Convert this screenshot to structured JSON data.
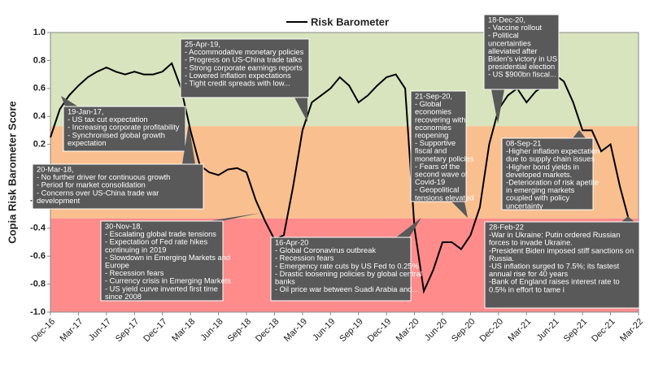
{
  "chart_data": {
    "type": "line",
    "y_label": "Copia Risk Barometer Score",
    "x": [
      "Dec-16",
      "Jan-17",
      "Feb-17",
      "Mar-17",
      "Apr-17",
      "May-17",
      "Jun-17",
      "Jul-17",
      "Aug-17",
      "Sep-17",
      "Oct-17",
      "Nov-17",
      "Dec-17",
      "Jan-18",
      "Feb-18",
      "Mar-18",
      "Apr-18",
      "May-18",
      "Jun-18",
      "Jul-18",
      "Aug-18",
      "Sep-18",
      "Oct-18",
      "Nov-18",
      "Dec-18",
      "Jan-19",
      "Feb-19",
      "Mar-19",
      "Apr-19",
      "May-19",
      "Jun-19",
      "Jul-19",
      "Aug-19",
      "Sep-19",
      "Oct-19",
      "Nov-19",
      "Dec-19",
      "Jan-20",
      "Feb-20",
      "Mar-20",
      "Apr-20",
      "May-20",
      "Jun-20",
      "Jul-20",
      "Aug-20",
      "Sep-20",
      "Oct-20",
      "Nov-20",
      "Dec-20",
      "Jan-21",
      "Feb-21",
      "Mar-21",
      "Apr-21",
      "May-21",
      "Jun-21",
      "Jul-21",
      "Aug-21",
      "Sep-21",
      "Oct-21",
      "Nov-21",
      "Dec-21",
      "Jan-22",
      "Feb-22",
      "Mar-22"
    ],
    "xticks": [
      "Dec-16",
      "Mar-17",
      "Jun-17",
      "Sep-17",
      "Dec-17",
      "Mar-18",
      "Jun-18",
      "Sep-18",
      "Dec-18",
      "Mar-19",
      "Jun-19",
      "Sep-19",
      "Dec-19",
      "Mar-20",
      "Jun-20",
      "Sep-20",
      "Dec-20",
      "Mar-21",
      "Jun-21",
      "Sep-21",
      "Dec-21",
      "Mar-22"
    ],
    "series": [
      {
        "name": "Risk Barometer",
        "color": "#000000",
        "values": [
          0.25,
          0.45,
          0.55,
          0.62,
          0.68,
          0.72,
          0.75,
          0.72,
          0.7,
          0.72,
          0.7,
          0.7,
          0.72,
          0.78,
          0.6,
          0.3,
          0.05,
          0.0,
          -0.02,
          0.02,
          0.03,
          0.0,
          -0.2,
          -0.35,
          -0.48,
          -0.45,
          -0.1,
          0.3,
          0.5,
          0.55,
          0.6,
          0.68,
          0.62,
          0.5,
          0.55,
          0.62,
          0.68,
          0.7,
          0.6,
          -0.4,
          -0.85,
          -0.7,
          -0.5,
          -0.5,
          -0.55,
          -0.45,
          -0.25,
          0.2,
          0.45,
          0.55,
          0.6,
          0.5,
          0.58,
          0.62,
          0.7,
          0.65,
          0.5,
          0.3,
          0.3,
          0.15,
          0.2,
          -0.1,
          -0.35,
          -0.6
        ]
      }
    ],
    "ylim": [
      -1,
      1
    ],
    "yticks": [
      {
        "value": -1,
        "label": "-1.0"
      },
      {
        "value": -0.8,
        "label": "-0.8"
      },
      {
        "value": -0.6,
        "label": "-0.6"
      },
      {
        "value": -0.4,
        "label": "-0.4"
      },
      {
        "value": -0.2,
        "label": "-0.2"
      },
      {
        "value": 0,
        "label": "0.0"
      },
      {
        "value": 0.2,
        "label": "0.2"
      },
      {
        "value": 0.4,
        "label": "0.4"
      },
      {
        "value": 0.6,
        "label": "0.6"
      },
      {
        "value": 0.8,
        "label": "0.8"
      },
      {
        "value": 1,
        "label": "1.0"
      }
    ],
    "bands": [
      {
        "from": 0.33,
        "to": 1,
        "color": "#d7e4bd"
      },
      {
        "from": -0.33,
        "to": 0.33,
        "color": "#f9bf8f"
      },
      {
        "from": -1,
        "to": -0.33,
        "color": "#ff8b8b"
      }
    ],
    "annotations": [
      {
        "lines": [
          "19-Jan-17,",
          "- US tax cut expectation",
          "- Increasing corporate profitability",
          "- Synchronised global growth",
          "expectation"
        ]
      },
      {
        "lines": [
          "20-Mar-18,",
          "- No further driver for continuous growth",
          "- Period for market consolidation",
          "- Concerns over US-China trade war",
          "development"
        ]
      },
      {
        "lines": [
          "30-Nov-18,",
          "- Escalating global trade tensions",
          "- Expectation of Fed rate hikes",
          "continuing in 2019",
          "- Slowdown in Emerging Markets and",
          "Europe",
          "- Recession fears",
          "- Currency crisis in Emerging Markets",
          "- US yield curve inverted first time",
          "since 2008"
        ]
      },
      {
        "lines": [
          "25-Apr-19,",
          "- Accommodative monetary policies",
          "- Progress on US-China trade talks",
          "- Strong corporate earnings reports",
          "- Lowered inflation expectations",
          "- Tight credit spreads with low..."
        ]
      },
      {
        "lines": [
          "16-Apr-20",
          "- Global Coronavirus outbreak",
          "- Recession fears",
          "- Emergency rate cuts by US Fed to 0.25%",
          "- Drastic loosening policies by global central",
          "banks",
          "- Oil price war between Suadi Arabia and..."
        ]
      },
      {
        "lines": [
          "21-Sep-20,",
          "- Global",
          "economies",
          "recovering with",
          "economies",
          "reopening",
          "- Supportive",
          "fiscal and",
          "monetary policies",
          "- Fears of the",
          "second wave of",
          "Covid-19",
          "- Geopolitical",
          "tensions elevated"
        ]
      },
      {
        "lines": [
          "18-Dec-20,",
          "- Vaccine rollout",
          "- Political",
          "uncertainties",
          "alleviated after",
          "Biden's victory in US",
          "presidential election",
          "- US $900bn fiscal..."
        ]
      },
      {
        "lines": [
          "08-Sep-21",
          "-Higher inflation expectation",
          "due to supply chain issues",
          "-Higher bond yields in",
          "developed markets.",
          "-Deterioration of risk apetite",
          "in emerging markets",
          "coupled with policy",
          "uncertainty"
        ]
      },
      {
        "lines": [
          "28-Feb-22",
          "-War in Ukraine: Putin ordered Russian",
          "forces to invade Ukraine.",
          "-President Biden imposed stiff sanctions on",
          "Russia.",
          "-US inflation surged to 7.5%; its fastest",
          "annual rise for 40 years",
          "-Bank of England raises interest rate to",
          "0.5% in effort to tame i"
        ]
      }
    ]
  }
}
